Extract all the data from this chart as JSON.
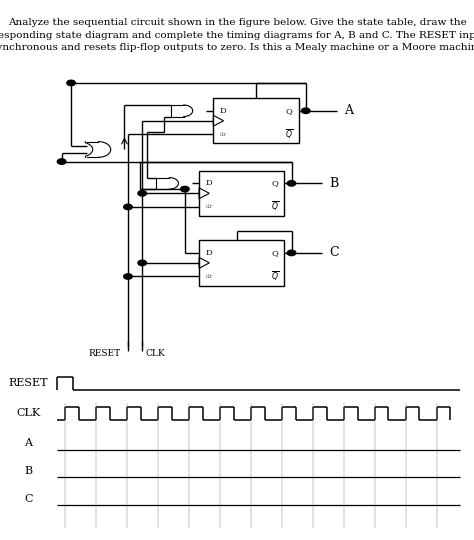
{
  "title_line1": "Analyze the sequential circuit shown in the figure below. Give the state table, draw the",
  "title_line2": "corresponding state diagram and complete the timing diagrams for A, B and C. The RESET input is",
  "title_line3": "asynchronous and resets flip-flop outputs to zero. Is this a Mealy machine or a Moore machine?",
  "title_fontsize": 7.5,
  "bg_color": "#ffffff",
  "timing_labels": [
    "RESET",
    "CLK",
    "A",
    "B",
    "C"
  ],
  "clk_pulses": 13,
  "reset_label": "RESET",
  "clk_label": "CLK"
}
